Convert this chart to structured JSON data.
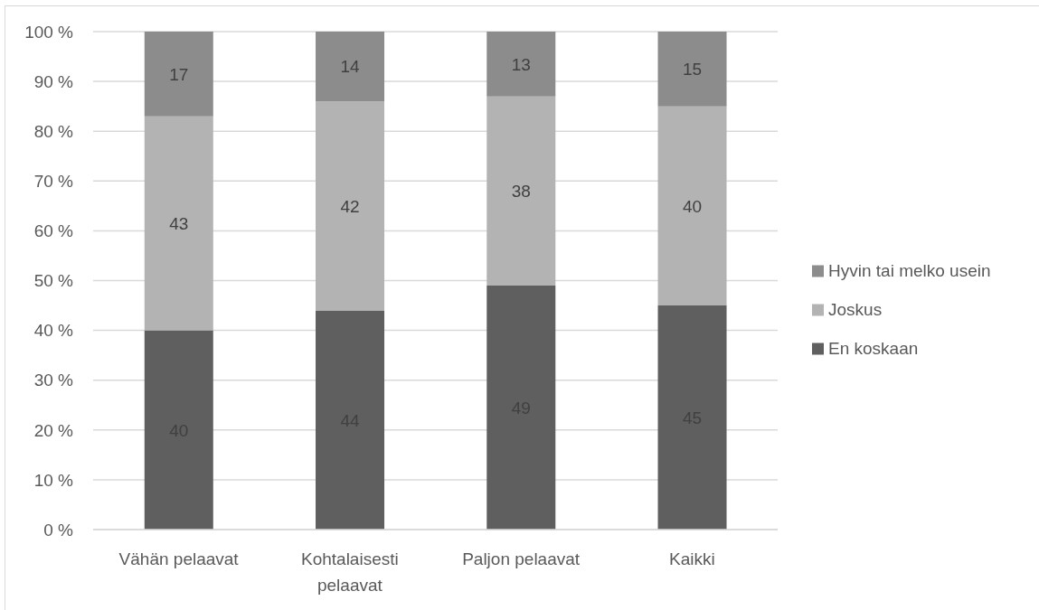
{
  "chart_data": {
    "type": "bar",
    "stacked": true,
    "categories": [
      "Vähän pelaavat",
      "Kohtalaisesti pelaavat",
      "Paljon pelaavat",
      "Kaikki"
    ],
    "series": [
      {
        "name": "En koskaan",
        "color": "#5f5f5f",
        "values": [
          40,
          44,
          49,
          45
        ]
      },
      {
        "name": "Joskus",
        "color": "#b3b3b3",
        "values": [
          43,
          42,
          38,
          40
        ]
      },
      {
        "name": "Hyvin tai melko usein",
        "color": "#8c8c8c",
        "values": [
          17,
          14,
          13,
          15
        ]
      }
    ],
    "ylim": [
      0,
      100
    ],
    "yticks": [
      {
        "value": 0,
        "label": "0 %"
      },
      {
        "value": 10,
        "label": "10 %"
      },
      {
        "value": 20,
        "label": "20 %"
      },
      {
        "value": 30,
        "label": "30 %"
      },
      {
        "value": 40,
        "label": "40 %"
      },
      {
        "value": 50,
        "label": "50 %"
      },
      {
        "value": 60,
        "label": "60 %"
      },
      {
        "value": 70,
        "label": "70 %"
      },
      {
        "value": 80,
        "label": "80 %"
      },
      {
        "value": 90,
        "label": "90 %"
      },
      {
        "value": 100,
        "label": "100 %"
      }
    ],
    "grid": "y",
    "legend": "right",
    "data_labels": true
  }
}
